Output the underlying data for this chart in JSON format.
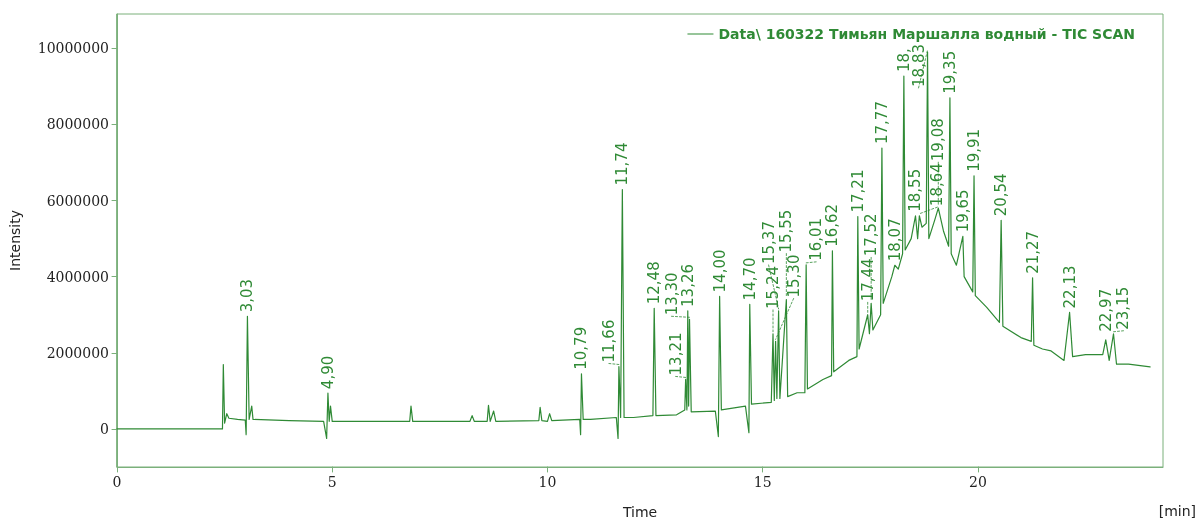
{
  "chart_data": {
    "type": "line",
    "xlabel": "Time",
    "ylabel": "Intensity",
    "xlim": [
      0,
      24.3
    ],
    "xticks": [
      0,
      5,
      10,
      15,
      20
    ],
    "ylim": [
      -1000000,
      10900000
    ],
    "yticks": [
      0,
      2000000,
      4000000,
      6000000,
      8000000,
      10000000
    ],
    "grid": false,
    "legend": "top right",
    "marker": "none",
    "line_style": "solid",
    "series": [
      {
        "name": "Data\\ 160322 Тимьян Маршалла водный - TIC SCAN",
        "color": "#2f8a35",
        "x": [
          0,
          2.45,
          2.47,
          2.5,
          2.55,
          2.6,
          2.8,
          2.98,
          3.0,
          3.03,
          3.07,
          3.13,
          3.16,
          4.0,
          4.8,
          4.87,
          4.9,
          4.93,
          4.96,
          5.0,
          6.8,
          6.83,
          6.87,
          8.2,
          8.25,
          8.3,
          8.6,
          8.63,
          8.67,
          8.75,
          8.8,
          9.8,
          9.83,
          9.87,
          10.0,
          10.05,
          10.1,
          10.75,
          10.77,
          10.79,
          10.83,
          11.0,
          11.6,
          11.64,
          11.66,
          11.7,
          11.74,
          11.78,
          12.0,
          12.45,
          12.48,
          12.52,
          13.0,
          13.19,
          13.21,
          13.24,
          13.26,
          13.28,
          13.3,
          13.34,
          13.9,
          13.97,
          14.0,
          14.04,
          14.6,
          14.68,
          14.7,
          14.74,
          15.2,
          15.24,
          15.27,
          15.3,
          15.33,
          15.37,
          15.4,
          15.55,
          15.58,
          15.8,
          15.98,
          16.01,
          16.04,
          16.4,
          16.6,
          16.62,
          16.65,
          17.0,
          17.19,
          17.21,
          17.24,
          17.44,
          17.48,
          17.52,
          17.56,
          17.74,
          17.77,
          17.8,
          18.0,
          18.07,
          18.15,
          18.25,
          18.28,
          18.31,
          18.45,
          18.55,
          18.6,
          18.64,
          18.7,
          18.8,
          18.83,
          18.86,
          19.0,
          19.08,
          19.2,
          19.32,
          19.35,
          19.38,
          19.5,
          19.65,
          19.68,
          19.88,
          19.91,
          19.94,
          20.2,
          20.5,
          20.54,
          20.58,
          21.0,
          21.24,
          21.27,
          21.3,
          21.5,
          21.7,
          22.0,
          22.13,
          22.2,
          22.5,
          22.9,
          22.97,
          23.05,
          23.15,
          23.22,
          23.5,
          24.0
        ],
        "values": [
          0,
          0,
          1690000,
          150000,
          400000,
          280000,
          250000,
          230000,
          -150000,
          2960000,
          250000,
          600000,
          250000,
          220000,
          200000,
          -250000,
          940000,
          200000,
          600000,
          200000,
          200000,
          600000,
          200000,
          200000,
          350000,
          200000,
          200000,
          620000,
          200000,
          470000,
          200000,
          220000,
          570000,
          220000,
          200000,
          400000,
          220000,
          250000,
          -150000,
          1450000,
          250000,
          250000,
          300000,
          -250000,
          1640000,
          300000,
          6290000,
          300000,
          300000,
          350000,
          3170000,
          350000,
          370000,
          500000,
          1300000,
          500000,
          3100000,
          600000,
          2880000,
          450000,
          470000,
          -200000,
          3480000,
          500000,
          600000,
          -100000,
          3270000,
          650000,
          700000,
          2500000,
          750000,
          2300000,
          800000,
          3100000,
          800000,
          3400000,
          850000,
          950000,
          950000,
          4310000,
          1050000,
          1300000,
          1400000,
          4680000,
          1500000,
          1800000,
          1900000,
          5580000,
          2100000,
          3000000,
          2500000,
          3300000,
          2600000,
          3000000,
          7380000,
          3300000,
          4000000,
          4300000,
          4200000,
          4600000,
          9270000,
          4700000,
          5000000,
          5600000,
          5000000,
          5600000,
          5300000,
          5400000,
          9900000,
          5000000,
          5500000,
          5800000,
          5200000,
          4800000,
          8700000,
          4600000,
          4300000,
          5060000,
          4000000,
          3600000,
          6650000,
          3500000,
          3200000,
          2800000,
          5480000,
          2700000,
          2400000,
          2300000,
          3970000,
          2200000,
          2100000,
          2050000,
          1800000,
          3060000,
          1900000,
          1950000,
          1950000,
          2340000,
          1800000,
          2500000,
          1700000,
          1700000,
          1630000
        ]
      }
    ],
    "annotations": [
      "[min]",
      {
        "text": "3,03",
        "x": 3.03,
        "y": 2960000
      },
      {
        "text": "4,90",
        "x": 4.9,
        "y": 940000
      },
      {
        "text": "10,79",
        "x": 10.79,
        "y": 1450000
      },
      {
        "text": "11,66",
        "x": 11.66,
        "y": 1640000
      },
      {
        "text": "11,74",
        "x": 11.74,
        "y": 6290000
      },
      {
        "text": "12,48",
        "x": 12.48,
        "y": 3170000
      },
      {
        "text": "13,21",
        "x": 13.21,
        "y": 1300000
      },
      {
        "text": "13,26",
        "x": 13.26,
        "y": 3100000
      },
      {
        "text": "13,30",
        "x": 13.3,
        "y": 2880000
      },
      {
        "text": "14,00",
        "x": 14.0,
        "y": 3480000
      },
      {
        "text": "14,70",
        "x": 14.7,
        "y": 3270000
      },
      {
        "text": "15,24",
        "x": 15.24,
        "y": 2500000
      },
      {
        "text": "15,30",
        "x": 15.3,
        "y": 2300000
      },
      {
        "text": "15,37",
        "x": 15.37,
        "y": 3100000
      },
      {
        "text": "15,55",
        "x": 15.55,
        "y": 3400000
      },
      {
        "text": "16,01",
        "x": 16.01,
        "y": 4310000
      },
      {
        "text": "16,62",
        "x": 16.62,
        "y": 4680000
      },
      {
        "text": "17,21",
        "x": 17.21,
        "y": 5580000
      },
      {
        "text": "17,44",
        "x": 17.44,
        "y": 3000000
      },
      {
        "text": "17,52",
        "x": 17.52,
        "y": 3300000
      },
      {
        "text": "17,77",
        "x": 17.77,
        "y": 7380000
      },
      {
        "text": "18,07",
        "x": 18.07,
        "y": 4300000
      },
      {
        "text": "18,",
        "x": 18.28,
        "y": 9270000
      },
      {
        "text": "18,55",
        "x": 18.55,
        "y": 5600000
      },
      {
        "text": "18,64",
        "x": 18.64,
        "y": 5600000
      },
      {
        "text": "18,83",
        "x": 18.83,
        "y": 9900000
      },
      {
        "text": "19,08",
        "x": 19.08,
        "y": 5800000
      },
      {
        "text": "19,35",
        "x": 19.35,
        "y": 8700000
      },
      {
        "text": "19,65",
        "x": 19.65,
        "y": 5060000
      },
      {
        "text": "19,91",
        "x": 19.91,
        "y": 6650000
      },
      {
        "text": "20,54",
        "x": 20.54,
        "y": 5480000
      },
      {
        "text": "21,27",
        "x": 21.27,
        "y": 3970000
      },
      {
        "text": "22,13",
        "x": 22.13,
        "y": 3060000
      },
      {
        "text": "22,97",
        "x": 22.97,
        "y": 2340000
      },
      {
        "text": "23,15",
        "x": 23.15,
        "y": 2500000
      }
    ]
  }
}
